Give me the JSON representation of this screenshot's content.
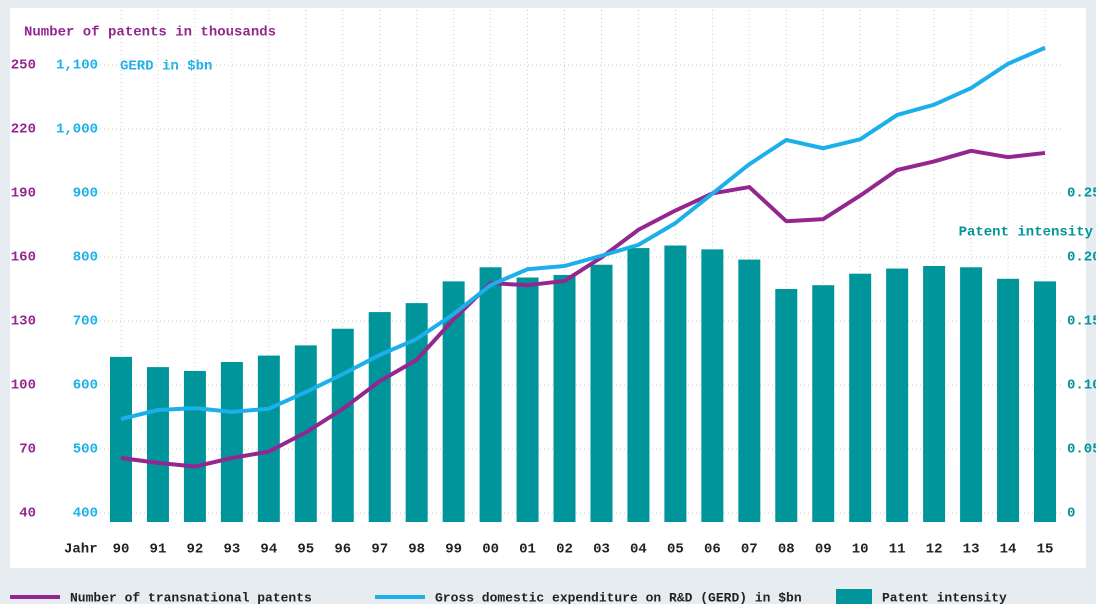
{
  "chart_data": {
    "type": "bar-line",
    "y_label": "Number of patents in thousands",
    "y2_label": "GERD in $bn",
    "y3_label": "Patent intensity",
    "x_label": "Jahr",
    "categories": [
      "90",
      "91",
      "92",
      "93",
      "94",
      "95",
      "96",
      "97",
      "98",
      "99",
      "00",
      "01",
      "02",
      "03",
      "04",
      "05",
      "06",
      "07",
      "08",
      "09",
      "10",
      "11",
      "12",
      "13",
      "14",
      "15"
    ],
    "series": [
      {
        "name": "Number of transnational patents",
        "color": "#93278f",
        "type": "line",
        "axis": "y",
        "values": [
          70,
          67.7,
          66,
          70,
          73,
          82,
          93,
          106,
          116,
          135,
          152,
          151,
          153,
          164,
          177,
          186,
          194,
          197,
          181,
          182,
          193,
          205,
          209,
          214,
          211,
          213
        ]
      },
      {
        "name": "Gross domestic expenditure on R&D (GERD) in $bn",
        "color": "#1bb0ea",
        "type": "line",
        "axis": "y2",
        "values": [
          561,
          575,
          578,
          572,
          577,
          603,
          631,
          661,
          686,
          725,
          770,
          795,
          800,
          816,
          833,
          867,
          913,
          959,
          997,
          984,
          998,
          1036,
          1052,
          1078,
          1116,
          1141
        ]
      },
      {
        "name": "Patent intensity",
        "color": "#00959a",
        "type": "bar",
        "axis": "y3",
        "values": [
          0.129,
          0.121,
          0.118,
          0.125,
          0.13,
          0.138,
          0.151,
          0.164,
          0.171,
          0.188,
          0.199,
          0.191,
          0.193,
          0.201,
          0.214,
          0.216,
          0.213,
          0.205,
          0.182,
          0.185,
          0.194,
          0.198,
          0.2,
          0.199,
          0.19,
          0.188
        ]
      }
    ],
    "ylim": [
      40,
      280
    ],
    "yticks": [
      40,
      70,
      100,
      130,
      160,
      190,
      220,
      250
    ],
    "y2lim": [
      400,
      1200
    ],
    "y2ticks": [
      400,
      500,
      600,
      700,
      800,
      900,
      {
        "value": 1000,
        "label": "1,000"
      },
      {
        "value": 1100,
        "label": "1,100"
      }
    ],
    "y3lim": [
      0,
      0.4
    ],
    "y3ticks": [
      0,
      0.05,
      {
        "value": 0.1,
        "label": "0.10"
      },
      0.15,
      {
        "value": 0.2,
        "label": "0.20"
      },
      0.25
    ],
    "grid": true
  }
}
